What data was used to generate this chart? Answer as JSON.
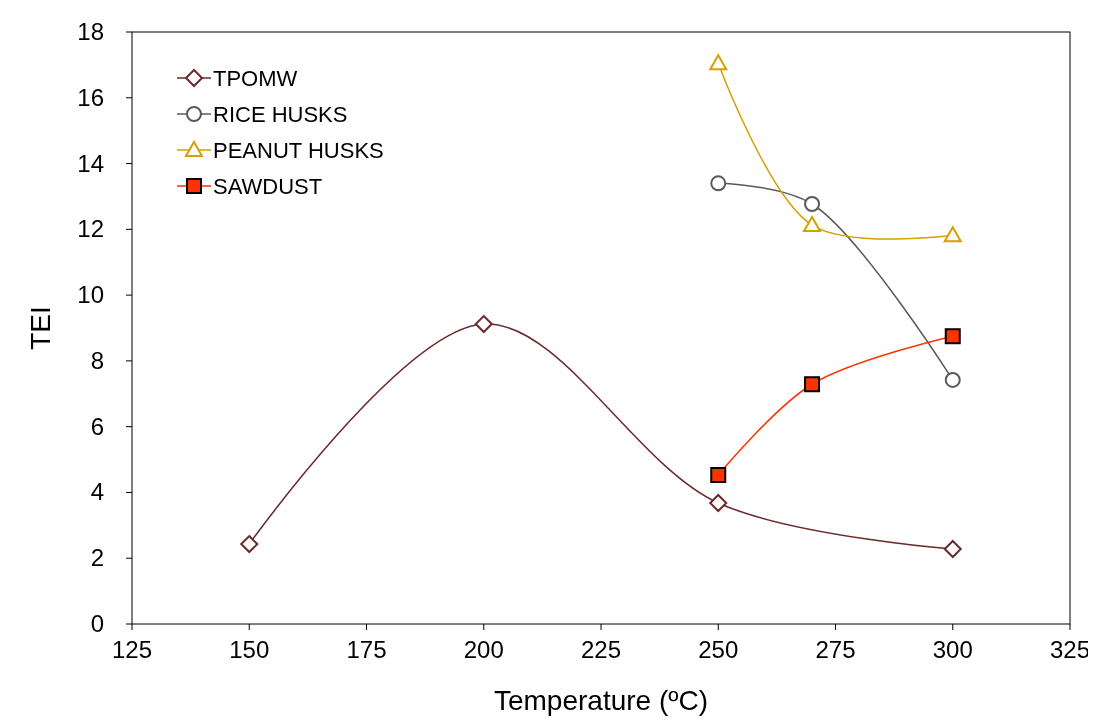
{
  "chart_data": {
    "type": "line",
    "xlabel": "Temperature (ºC)",
    "ylabel": "TEI",
    "xlim": [
      125,
      325
    ],
    "xticks": [
      125,
      150,
      175,
      200,
      225,
      250,
      275,
      300,
      325
    ],
    "ylim": [
      0,
      18
    ],
    "yticks": [
      0,
      2,
      4,
      6,
      8,
      10,
      12,
      14,
      16,
      18
    ],
    "grid": false,
    "legend": "top left",
    "line_style": "solid",
    "series": [
      {
        "name": "TPOMW",
        "color": "#6b2a2a",
        "marker": "diamond",
        "x": [
          150,
          200,
          250,
          300
        ],
        "values": [
          2.43,
          9.12,
          3.68,
          2.28
        ]
      },
      {
        "name": "RICE HUSKS",
        "color": "#5a5a5a",
        "marker": "circle",
        "x": [
          250,
          270,
          300
        ],
        "values": [
          13.4,
          12.77,
          7.42
        ]
      },
      {
        "name": "PEANUT HUSKS",
        "color": "#d4a000",
        "marker": "triangle",
        "x": [
          250,
          270,
          300
        ],
        "values": [
          17.05,
          12.13,
          11.82
        ]
      },
      {
        "name": "SAWDUST",
        "color": "#ff3300",
        "marker": "square",
        "x": [
          250,
          270,
          300
        ],
        "values": [
          4.53,
          7.29,
          8.75
        ]
      }
    ]
  }
}
